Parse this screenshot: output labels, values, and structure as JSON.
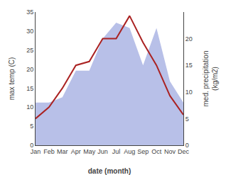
{
  "chart_data": {
    "type": "line",
    "xlabel": "date (month)",
    "ylabel": "max temp (C)",
    "y2label": "med. precipitation\n(kg/m2)",
    "categories": [
      "Jan",
      "Feb",
      "Mar",
      "Apr",
      "May",
      "Jun",
      "Jul",
      "Aug",
      "Sep",
      "Oct",
      "Nov",
      "Dec"
    ],
    "series": [
      {
        "type": "area",
        "axis": "y2",
        "color": "#b8c0e8",
        "values": [
          8,
          8,
          9,
          14,
          14,
          20,
          23,
          22,
          15,
          22,
          12,
          8
        ]
      },
      {
        "type": "line",
        "color": "#aa2222",
        "values": [
          7,
          10,
          15,
          21,
          22,
          28,
          28,
          34,
          27,
          21,
          13,
          8
        ]
      }
    ],
    "ylim": [
      0,
      35
    ],
    "yticks": [
      0,
      5,
      10,
      15,
      20,
      25,
      30,
      35
    ],
    "y2lim": [
      0,
      25
    ],
    "y2ticks": [
      0,
      5,
      10,
      15,
      20
    ],
    "grid": false
  }
}
